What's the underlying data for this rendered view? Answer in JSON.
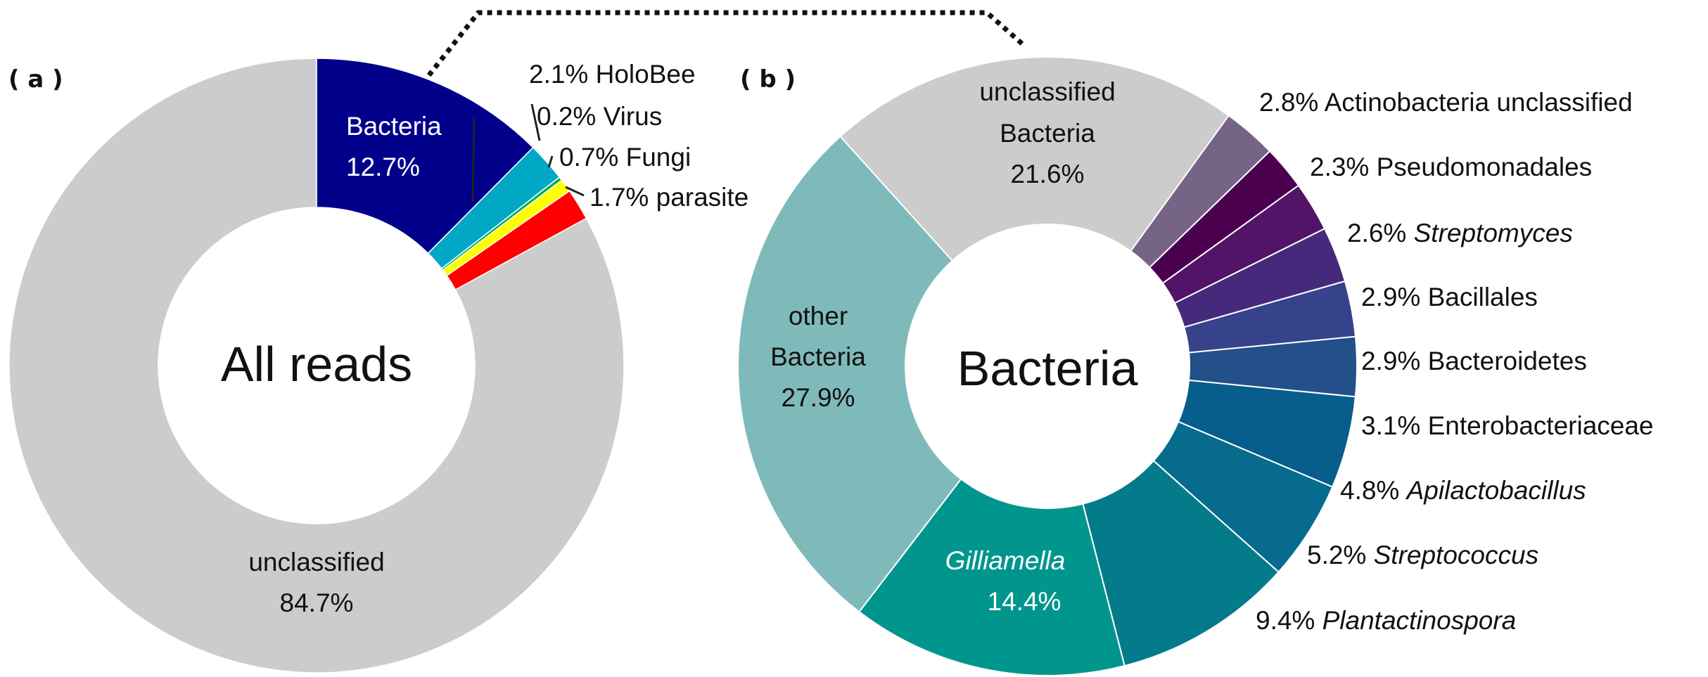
{
  "chart_data": [
    {
      "type": "pie",
      "panel_label": "( a )",
      "center_label": "All reads",
      "slices": [
        {
          "name": "Bacteria",
          "value": 12.7,
          "value_text": "12.7%",
          "color": "#00008b"
        },
        {
          "name": "HoloBee",
          "value": 2.1,
          "value_text": "2.1%",
          "color": "#00a8c6"
        },
        {
          "name": "Virus",
          "value": 0.2,
          "value_text": "0.2%",
          "color": "#00b050"
        },
        {
          "name": "Fungi",
          "value": 0.7,
          "value_text": "0.7%",
          "color": "#ffff00"
        },
        {
          "name": "parasite",
          "value": 1.7,
          "value_text": "1.7%",
          "color": "#ff0000"
        },
        {
          "name": "unclassified",
          "value": 84.7,
          "value_text": "84.7%",
          "color": "#cccccc"
        }
      ]
    },
    {
      "type": "pie",
      "panel_label": "( b )",
      "center_label": "Bacteria",
      "slices": [
        {
          "name": "Actinobacteria unclassified",
          "value": 2.8,
          "value_text": "2.8%",
          "color": "#766487",
          "italic": false
        },
        {
          "name": "Pseudomonadales",
          "value": 2.3,
          "value_text": "2.3%",
          "color": "#4b004f",
          "italic": false
        },
        {
          "name": "Streptomyces",
          "value": 2.6,
          "value_text": "2.6%",
          "color": "#521466",
          "italic": true
        },
        {
          "name": "Bacillales",
          "value": 2.9,
          "value_text": "2.9%",
          "color": "#452a7c",
          "italic": false
        },
        {
          "name": "Bacteroidetes",
          "value": 2.9,
          "value_text": "2.9%",
          "color": "#36428a",
          "italic": false
        },
        {
          "name": "Enterobacteriaceae",
          "value": 3.1,
          "value_text": "3.1%",
          "color": "#235088",
          "italic": false
        },
        {
          "name": "Apilactobacillus",
          "value": 4.8,
          "value_text": "4.8%",
          "color": "#075d8c",
          "italic": true
        },
        {
          "name": "Streptococcus",
          "value": 5.2,
          "value_text": "5.2%",
          "color": "#066b8c",
          "italic": true
        },
        {
          "name": "Plantactinospora",
          "value": 9.4,
          "value_text": "9.4%",
          "color": "#037b8b",
          "italic": true
        },
        {
          "name": "Gilliamella",
          "value": 14.4,
          "value_text": "14.4%",
          "color": "#00968d",
          "italic": true
        },
        {
          "name": "other Bacteria",
          "value": 27.9,
          "value_text": "27.9%",
          "color": "#7fbaba",
          "italic": false
        },
        {
          "name": "unclassified Bacteria",
          "value": 21.6,
          "value_text": "21.6%",
          "color": "#cccccc",
          "italic": false
        }
      ]
    }
  ]
}
